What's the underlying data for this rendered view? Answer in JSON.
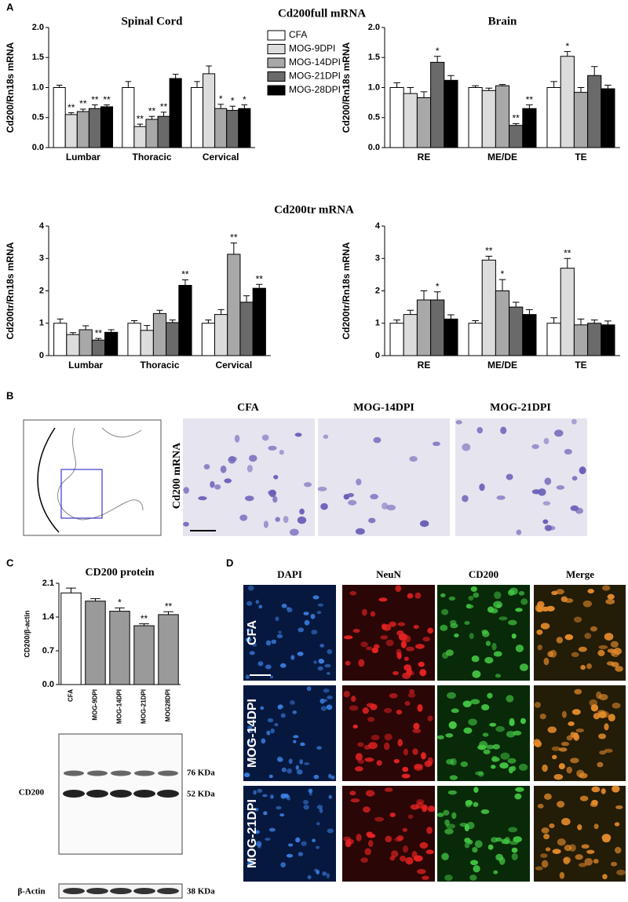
{
  "panel_labels": [
    "A",
    "B",
    "C",
    "D"
  ],
  "panel_a": {
    "heading_full": "Cd200full mRNA",
    "heading_tr": "Cd200tr mRNA"
  },
  "panel_b": {
    "columns": [
      "CFA",
      "MOG-14DPI",
      "MOG-21DPI"
    ],
    "row_label": "Cd200 mRNA"
  },
  "panel_c": {
    "blot_label": "CD200",
    "band_upper": "76 KDa",
    "band_lower": "52 KDa",
    "loading_label": "β-Actin",
    "loading_band": "38 KDa"
  },
  "panel_d": {
    "columns": [
      "DAPI",
      "NeuN",
      "CD200",
      "Merge"
    ],
    "rows": [
      "CFA",
      "MOG-14DPI",
      "MOG-21DPI"
    ]
  },
  "chart_data": [
    {
      "type": "bar",
      "title": "Spinal Cord",
      "ylabel": "Cd200/Rn18s mRNA",
      "legend": "right",
      "categories": [
        "Lumbar",
        "Thoracic",
        "Cervical"
      ],
      "ylim": [
        0,
        2
      ],
      "yticks": [
        {
          "value": 0,
          "label": "0.0"
        },
        {
          "value": 0.5,
          "label": "0.5"
        },
        {
          "value": 1,
          "label": "1.0"
        },
        {
          "value": 1.5,
          "label": "1.5"
        },
        {
          "value": 2,
          "label": "2.0"
        }
      ],
      "series": [
        {
          "name": "CFA",
          "color": "#ffffff",
          "values": [
            1.0,
            1.0,
            1.0
          ],
          "errors": [
            0.04,
            0.1,
            0.1
          ],
          "significance": [
            null,
            null,
            null
          ]
        },
        {
          "name": "MOG-9DPI",
          "color": "#dcdcdc",
          "values": [
            0.55,
            0.35,
            1.23
          ],
          "errors": [
            0.03,
            0.04,
            0.13
          ],
          "significance": [
            "**",
            "**",
            null
          ]
        },
        {
          "name": "MOG-14DPI",
          "color": "#a8a8a8",
          "values": [
            0.6,
            0.47,
            0.65
          ],
          "errors": [
            0.04,
            0.05,
            0.07
          ],
          "significance": [
            "**",
            "**",
            "*"
          ]
        },
        {
          "name": "MOG-21DPI",
          "color": "#6a6a6a",
          "values": [
            0.65,
            0.52,
            0.62
          ],
          "errors": [
            0.06,
            0.07,
            0.07
          ],
          "significance": [
            "**",
            "**",
            "*"
          ]
        },
        {
          "name": "MOG-28DPI",
          "color": "#000000",
          "values": [
            0.68,
            1.15,
            0.65
          ],
          "errors": [
            0.03,
            0.07,
            0.06
          ],
          "significance": [
            "**",
            null,
            "*"
          ]
        }
      ]
    },
    {
      "type": "bar",
      "title": "Brain",
      "ylabel": "Cd200/Rn18s mRNA",
      "categories": [
        "RE",
        "ME/DE",
        "TE"
      ],
      "ylim": [
        0,
        2
      ],
      "yticks": [
        {
          "value": 0,
          "label": "0.0"
        },
        {
          "value": 0.5,
          "label": "0.5"
        },
        {
          "value": 1,
          "label": "1.0"
        },
        {
          "value": 1.5,
          "label": "1.5"
        },
        {
          "value": 2,
          "label": "2.0"
        }
      ],
      "series": [
        {
          "name": "CFA",
          "color": "#ffffff",
          "values": [
            1.0,
            1.0,
            1.0
          ],
          "errors": [
            0.08,
            0.03,
            0.1
          ],
          "significance": [
            null,
            null,
            null
          ]
        },
        {
          "name": "MOG-9DPI",
          "color": "#dcdcdc",
          "values": [
            0.9,
            0.95,
            1.52
          ],
          "errors": [
            0.1,
            0.04,
            0.08
          ],
          "significance": [
            null,
            null,
            "*"
          ]
        },
        {
          "name": "MOG-14DPI",
          "color": "#a8a8a8",
          "values": [
            0.83,
            1.03,
            0.92
          ],
          "errors": [
            0.1,
            0.02,
            0.08
          ],
          "significance": [
            null,
            null,
            null
          ]
        },
        {
          "name": "MOG-21DPI",
          "color": "#6a6a6a",
          "values": [
            1.42,
            0.37,
            1.2
          ],
          "errors": [
            0.1,
            0.03,
            0.15
          ],
          "significance": [
            "*",
            "**",
            null
          ]
        },
        {
          "name": "MOG-28DPI",
          "color": "#000000",
          "values": [
            1.12,
            0.65,
            0.98
          ],
          "errors": [
            0.08,
            0.06,
            0.06
          ],
          "significance": [
            null,
            "**",
            null
          ]
        }
      ]
    },
    {
      "type": "bar",
      "ylabel": "Cd200tr/Rn18s mRNA",
      "categories": [
        "Lumbar",
        "Thoracic",
        "Cervical"
      ],
      "ylim": [
        0,
        4
      ],
      "yticks": [
        0,
        1,
        2,
        3,
        4
      ],
      "series": [
        {
          "name": "CFA",
          "color": "#ffffff",
          "values": [
            1.0,
            1.0,
            1.0
          ],
          "errors": [
            0.13,
            0.08,
            0.1
          ],
          "significance": [
            null,
            null,
            null
          ]
        },
        {
          "name": "MOG-9DPI",
          "color": "#dcdcdc",
          "values": [
            0.65,
            0.78,
            1.27
          ],
          "errors": [
            0.06,
            0.15,
            0.15
          ],
          "significance": [
            null,
            null,
            null
          ]
        },
        {
          "name": "MOG-14DPI",
          "color": "#a8a8a8",
          "values": [
            0.8,
            1.3,
            3.13
          ],
          "errors": [
            0.12,
            0.1,
            0.35
          ],
          "significance": [
            null,
            null,
            "**"
          ]
        },
        {
          "name": "MOG-21DPI",
          "color": "#6a6a6a",
          "values": [
            0.48,
            1.02,
            1.65
          ],
          "errors": [
            0.05,
            0.08,
            0.2
          ],
          "significance": [
            "**",
            null,
            null
          ]
        },
        {
          "name": "MOG-28DPI",
          "color": "#000000",
          "values": [
            0.72,
            2.17,
            2.08
          ],
          "errors": [
            0.08,
            0.17,
            0.12
          ],
          "significance": [
            null,
            "**",
            "**"
          ]
        }
      ]
    },
    {
      "type": "bar",
      "ylabel": "Cd200tr/Rn18s mRNA",
      "categories": [
        "RE",
        "ME/DE",
        "TE"
      ],
      "ylim": [
        0,
        4
      ],
      "yticks": [
        0,
        1,
        2,
        3,
        4
      ],
      "series": [
        {
          "name": "CFA",
          "color": "#ffffff",
          "values": [
            1.0,
            1.0,
            1.0
          ],
          "errors": [
            0.1,
            0.08,
            0.17
          ],
          "significance": [
            null,
            null,
            null
          ]
        },
        {
          "name": "MOG-9DPI",
          "color": "#dcdcdc",
          "values": [
            1.27,
            2.95,
            2.7
          ],
          "errors": [
            0.13,
            0.12,
            0.3
          ],
          "significance": [
            null,
            "**",
            "**"
          ]
        },
        {
          "name": "MOG-14DPI",
          "color": "#a8a8a8",
          "values": [
            1.72,
            2.0,
            0.95
          ],
          "errors": [
            0.28,
            0.35,
            0.18
          ],
          "significance": [
            null,
            "*",
            null
          ]
        },
        {
          "name": "MOG-21DPI",
          "color": "#6a6a6a",
          "values": [
            1.72,
            1.5,
            1.0
          ],
          "errors": [
            0.25,
            0.15,
            0.1
          ],
          "significance": [
            "*",
            null,
            null
          ]
        },
        {
          "name": "MOG-28DPI",
          "color": "#000000",
          "values": [
            1.13,
            1.27,
            0.95
          ],
          "errors": [
            0.13,
            0.15,
            0.12
          ],
          "significance": [
            null,
            null,
            null
          ]
        }
      ]
    },
    {
      "type": "bar",
      "title": "CD200 protein",
      "ylabel": "CD200/β-actin",
      "categories": [
        "CFA",
        "MOG-9DPI",
        "MOG-14DPI",
        "MOG-21DPI",
        "MOG28DPI"
      ],
      "values": [
        1.9,
        1.73,
        1.52,
        1.22,
        1.45
      ],
      "errors": [
        0.1,
        0.05,
        0.07,
        0.04,
        0.06
      ],
      "significance": [
        null,
        null,
        "*",
        "**",
        "**"
      ],
      "colors": [
        "#ffffff",
        "#9a9a9a",
        "#9a9a9a",
        "#9a9a9a",
        "#9a9a9a"
      ],
      "ylim": [
        0,
        2.1
      ],
      "yticks": [
        {
          "value": 0,
          "label": "0.0"
        },
        {
          "value": 0.7,
          "label": "0.7"
        },
        {
          "value": 1.4,
          "label": "1.4"
        },
        {
          "value": 2.1,
          "label": "2.1"
        }
      ]
    }
  ]
}
